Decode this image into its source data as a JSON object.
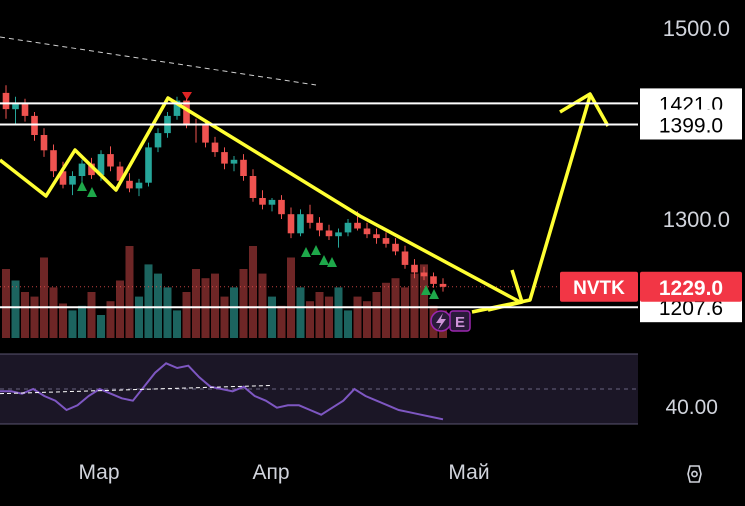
{
  "chart_data": {
    "type": "candlestick",
    "ticker": "NVTK",
    "last_price": "1229.0",
    "price_axis": {
      "ticks": [
        "1500.0",
        "1300.0"
      ],
      "range": [
        1150,
        1520
      ]
    },
    "levels": [
      {
        "label": "1421.0",
        "value": 1421.0
      },
      {
        "label": "1399.0",
        "value": 1399.0
      },
      {
        "label": "1207.6",
        "value": 1207.6
      }
    ],
    "x_axis": {
      "labels": [
        "Мар",
        "Апр",
        "Май"
      ]
    },
    "candles": [
      {
        "o": 1432,
        "h": 1440,
        "l": 1405,
        "c": 1415
      },
      {
        "o": 1415,
        "h": 1428,
        "l": 1400,
        "c": 1422
      },
      {
        "o": 1422,
        "h": 1426,
        "l": 1402,
        "c": 1408
      },
      {
        "o": 1408,
        "h": 1412,
        "l": 1382,
        "c": 1388
      },
      {
        "o": 1388,
        "h": 1395,
        "l": 1365,
        "c": 1372
      },
      {
        "o": 1372,
        "h": 1378,
        "l": 1344,
        "c": 1350
      },
      {
        "o": 1350,
        "h": 1360,
        "l": 1332,
        "c": 1336
      },
      {
        "o": 1336,
        "h": 1350,
        "l": 1325,
        "c": 1345
      },
      {
        "o": 1345,
        "h": 1362,
        "l": 1338,
        "c": 1358
      },
      {
        "o": 1358,
        "h": 1364,
        "l": 1342,
        "c": 1346
      },
      {
        "o": 1346,
        "h": 1372,
        "l": 1340,
        "c": 1368
      },
      {
        "o": 1368,
        "h": 1376,
        "l": 1350,
        "c": 1355
      },
      {
        "o": 1355,
        "h": 1360,
        "l": 1335,
        "c": 1340
      },
      {
        "o": 1340,
        "h": 1348,
        "l": 1328,
        "c": 1332
      },
      {
        "o": 1332,
        "h": 1342,
        "l": 1324,
        "c": 1338
      },
      {
        "o": 1338,
        "h": 1380,
        "l": 1334,
        "c": 1375
      },
      {
        "o": 1375,
        "h": 1395,
        "l": 1370,
        "c": 1390
      },
      {
        "o": 1390,
        "h": 1412,
        "l": 1385,
        "c": 1408
      },
      {
        "o": 1408,
        "h": 1428,
        "l": 1404,
        "c": 1424
      },
      {
        "o": 1424,
        "h": 1430,
        "l": 1395,
        "c": 1400
      },
      {
        "o": 1400,
        "h": 1405,
        "l": 1380,
        "c": 1398
      },
      {
        "o": 1398,
        "h": 1402,
        "l": 1375,
        "c": 1380
      },
      {
        "o": 1380,
        "h": 1386,
        "l": 1365,
        "c": 1370
      },
      {
        "o": 1370,
        "h": 1375,
        "l": 1352,
        "c": 1358
      },
      {
        "o": 1358,
        "h": 1366,
        "l": 1350,
        "c": 1362
      },
      {
        "o": 1362,
        "h": 1368,
        "l": 1340,
        "c": 1345
      },
      {
        "o": 1345,
        "h": 1352,
        "l": 1318,
        "c": 1322
      },
      {
        "o": 1322,
        "h": 1330,
        "l": 1310,
        "c": 1315
      },
      {
        "o": 1315,
        "h": 1322,
        "l": 1308,
        "c": 1320
      },
      {
        "o": 1320,
        "h": 1325,
        "l": 1300,
        "c": 1305
      },
      {
        "o": 1305,
        "h": 1312,
        "l": 1280,
        "c": 1285
      },
      {
        "o": 1285,
        "h": 1310,
        "l": 1282,
        "c": 1305
      },
      {
        "o": 1305,
        "h": 1315,
        "l": 1290,
        "c": 1296
      },
      {
        "o": 1296,
        "h": 1302,
        "l": 1282,
        "c": 1288
      },
      {
        "o": 1288,
        "h": 1294,
        "l": 1278,
        "c": 1282
      },
      {
        "o": 1282,
        "h": 1290,
        "l": 1270,
        "c": 1286
      },
      {
        "o": 1286,
        "h": 1300,
        "l": 1282,
        "c": 1296
      },
      {
        "o": 1296,
        "h": 1308,
        "l": 1288,
        "c": 1290
      },
      {
        "o": 1290,
        "h": 1296,
        "l": 1280,
        "c": 1284
      },
      {
        "o": 1284,
        "h": 1290,
        "l": 1274,
        "c": 1280
      },
      {
        "o": 1280,
        "h": 1286,
        "l": 1270,
        "c": 1274
      },
      {
        "o": 1274,
        "h": 1280,
        "l": 1262,
        "c": 1266
      },
      {
        "o": 1266,
        "h": 1272,
        "l": 1248,
        "c": 1252
      },
      {
        "o": 1252,
        "h": 1258,
        "l": 1238,
        "c": 1244
      },
      {
        "o": 1244,
        "h": 1250,
        "l": 1236,
        "c": 1240
      },
      {
        "o": 1240,
        "h": 1244,
        "l": 1228,
        "c": 1232
      },
      {
        "o": 1232,
        "h": 1238,
        "l": 1224,
        "c": 1229
      }
    ],
    "volume": [
      30,
      25,
      20,
      18,
      35,
      22,
      15,
      12,
      14,
      20,
      10,
      16,
      25,
      40,
      18,
      32,
      28,
      22,
      12,
      20,
      30,
      26,
      28,
      18,
      22,
      30,
      40,
      28,
      18,
      14,
      35,
      22,
      16,
      20,
      18,
      22,
      12,
      18,
      16,
      20,
      24,
      26,
      22,
      28,
      32,
      14,
      12
    ],
    "indicator": {
      "label": "40.00",
      "values": [
        44,
        44,
        43,
        45,
        42,
        40,
        36,
        38,
        42,
        45,
        43,
        41,
        40,
        46,
        52,
        56,
        54,
        55,
        50,
        46,
        45,
        44,
        46,
        42,
        40,
        37,
        38,
        38,
        36,
        34,
        37,
        40,
        45,
        42,
        40,
        38,
        36,
        35,
        34,
        33,
        32
      ]
    },
    "icons": [
      "lightning-icon",
      "earnings-icon",
      "settings-icon"
    ],
    "earnings_badge": "E",
    "colors": {
      "up": "#26a69a",
      "down": "#ef5350",
      "annotation": "#ffff33",
      "level_line": "#ffffff",
      "price_tag": "#f23645",
      "indicator": "#7e57c2"
    }
  }
}
